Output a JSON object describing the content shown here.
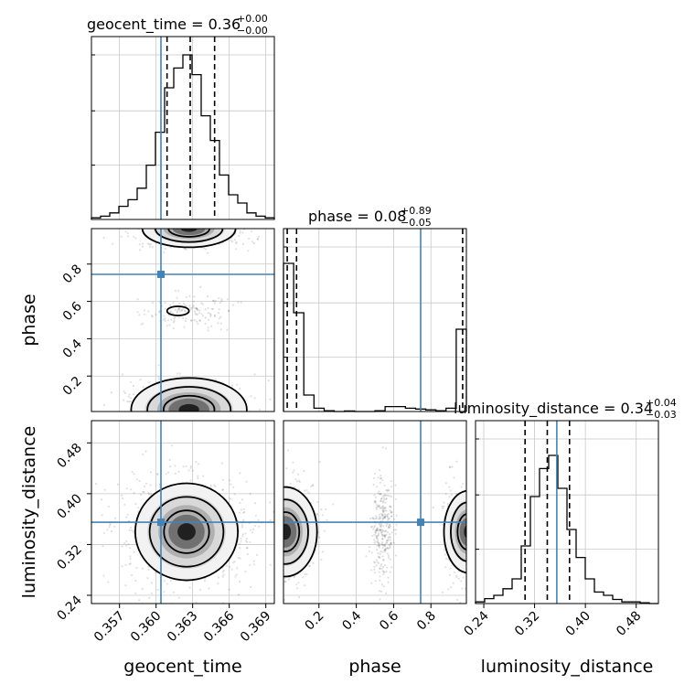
{
  "chart_data": {
    "type": "corner",
    "truth_color": "#4682b4",
    "grid": true,
    "titles": {
      "geocent_time": {
        "label": "geocent_time = 0.36",
        "plus": "+0.00",
        "minus": "−0.00"
      },
      "phase": {
        "label": "phase = 0.08",
        "plus": "+0.89",
        "minus": "−0.05"
      },
      "luminosity_distance": {
        "label": "luminosity_distance = 0.34",
        "plus": "+0.04",
        "minus": "−0.03"
      }
    },
    "axis_labels": {
      "geocent_time": "geocent_time",
      "phase": "phase",
      "luminosity_distance": "luminosity_distance"
    },
    "ticks": {
      "geocent_time": [
        "0.357",
        "0.360",
        "0.363",
        "0.366",
        "0.369"
      ],
      "phase": [
        "0.2",
        "0.4",
        "0.6",
        "0.8"
      ],
      "luminosity_distance": [
        "0.24",
        "0.32",
        "0.40",
        "0.48"
      ]
    },
    "ranges": {
      "geocent_time": [
        0.3547,
        0.3697
      ],
      "phase": [
        0.01,
        0.99
      ],
      "luminosity_distance": [
        0.227,
        0.515
      ]
    },
    "truths": {
      "geocent_time": 0.3604,
      "phase": 0.745,
      "luminosity_distance": 0.355
    },
    "quantiles": {
      "geocent_time": [
        0.3609,
        0.3628,
        0.3648
      ],
      "phase": [
        0.03,
        0.08,
        0.97
      ],
      "luminosity_distance": [
        0.305,
        0.34,
        0.375
      ]
    },
    "histograms": {
      "geocent_time": [
        0.01,
        0.02,
        0.04,
        0.08,
        0.12,
        0.19,
        0.33,
        0.53,
        0.8,
        0.92,
        1.0,
        0.88,
        0.63,
        0.48,
        0.27,
        0.15,
        0.1,
        0.04,
        0.02,
        0.01
      ],
      "phase": [
        0.9,
        0.6,
        0.1,
        0.02,
        0.005,
        0.0,
        0.003,
        0.0,
        0.0,
        0.005,
        0.03,
        0.03,
        0.02,
        0.015,
        0.01,
        0.005,
        0.02,
        0.5
      ],
      "luminosity_distance": [
        0.01,
        0.03,
        0.05,
        0.09,
        0.15,
        0.35,
        0.65,
        0.82,
        0.9,
        0.7,
        0.45,
        0.28,
        0.15,
        0.07,
        0.05,
        0.025,
        0.01,
        0.01,
        0.005,
        0.0
      ]
    }
  }
}
